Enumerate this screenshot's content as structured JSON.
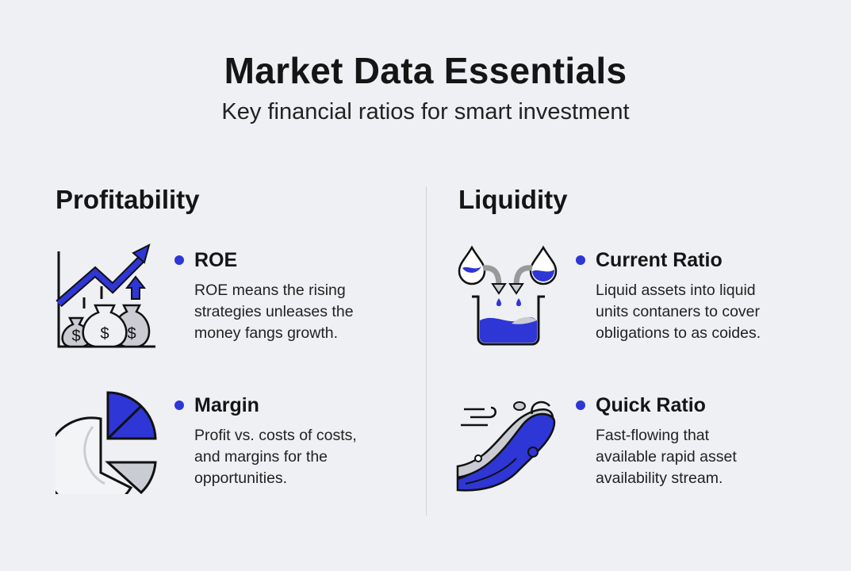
{
  "header": {
    "title": "Market Data Essentials",
    "subtitle": "Key financial ratios for smart investment"
  },
  "colors": {
    "accent": "#2f36d6",
    "background": "#eef0f3",
    "icon_gray": "#c9ccd3"
  },
  "sections": [
    {
      "heading": "Profitability",
      "items": [
        {
          "icon": "growth-chart-money-bags-icon",
          "title": "ROE",
          "lines": [
            "ROE means the rising",
            "strategies unleases the",
            "money fangs growth."
          ]
        },
        {
          "icon": "pie-chart-icon",
          "title": "Margin",
          "lines": [
            "Profit vs. costs of costs,",
            "and margins for the",
            "opportunities."
          ]
        }
      ]
    },
    {
      "heading": "Liquidity",
      "items": [
        {
          "icon": "drops-into-beaker-icon",
          "title": "Current Ratio",
          "lines": [
            "Liquid assets into liquid",
            "units contaners to cover",
            "obligations to as coides."
          ]
        },
        {
          "icon": "flowing-wave-icon",
          "title": "Quick Ratio",
          "lines": [
            "Fast-flowing that",
            "available rapid asset",
            "availability stream."
          ]
        }
      ]
    }
  ]
}
